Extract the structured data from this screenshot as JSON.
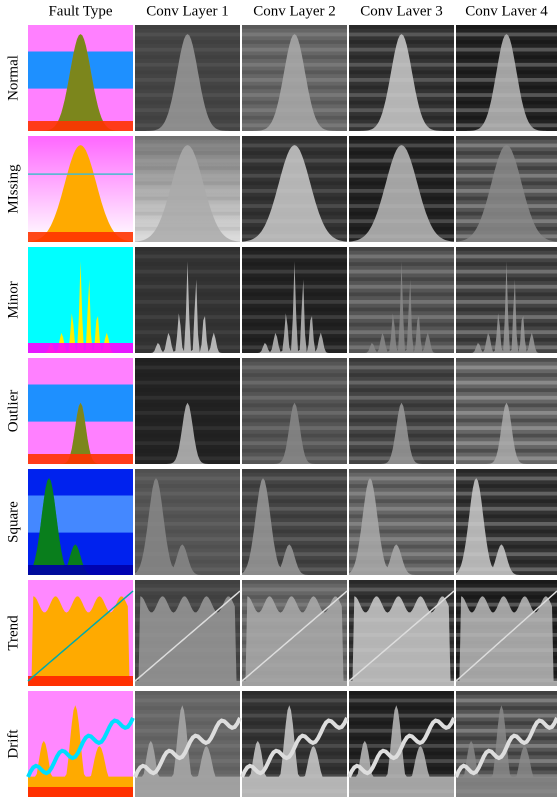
{
  "columns": [
    "Fault Type",
    "Conv Layer 1",
    "Conv Layer 2",
    "Conv Laver 3",
    "Conv Laver 4"
  ],
  "rows": [
    "Normal",
    "MIssing",
    "Minor",
    "Outlier",
    "Square",
    "Trend",
    "Drift"
  ]
}
